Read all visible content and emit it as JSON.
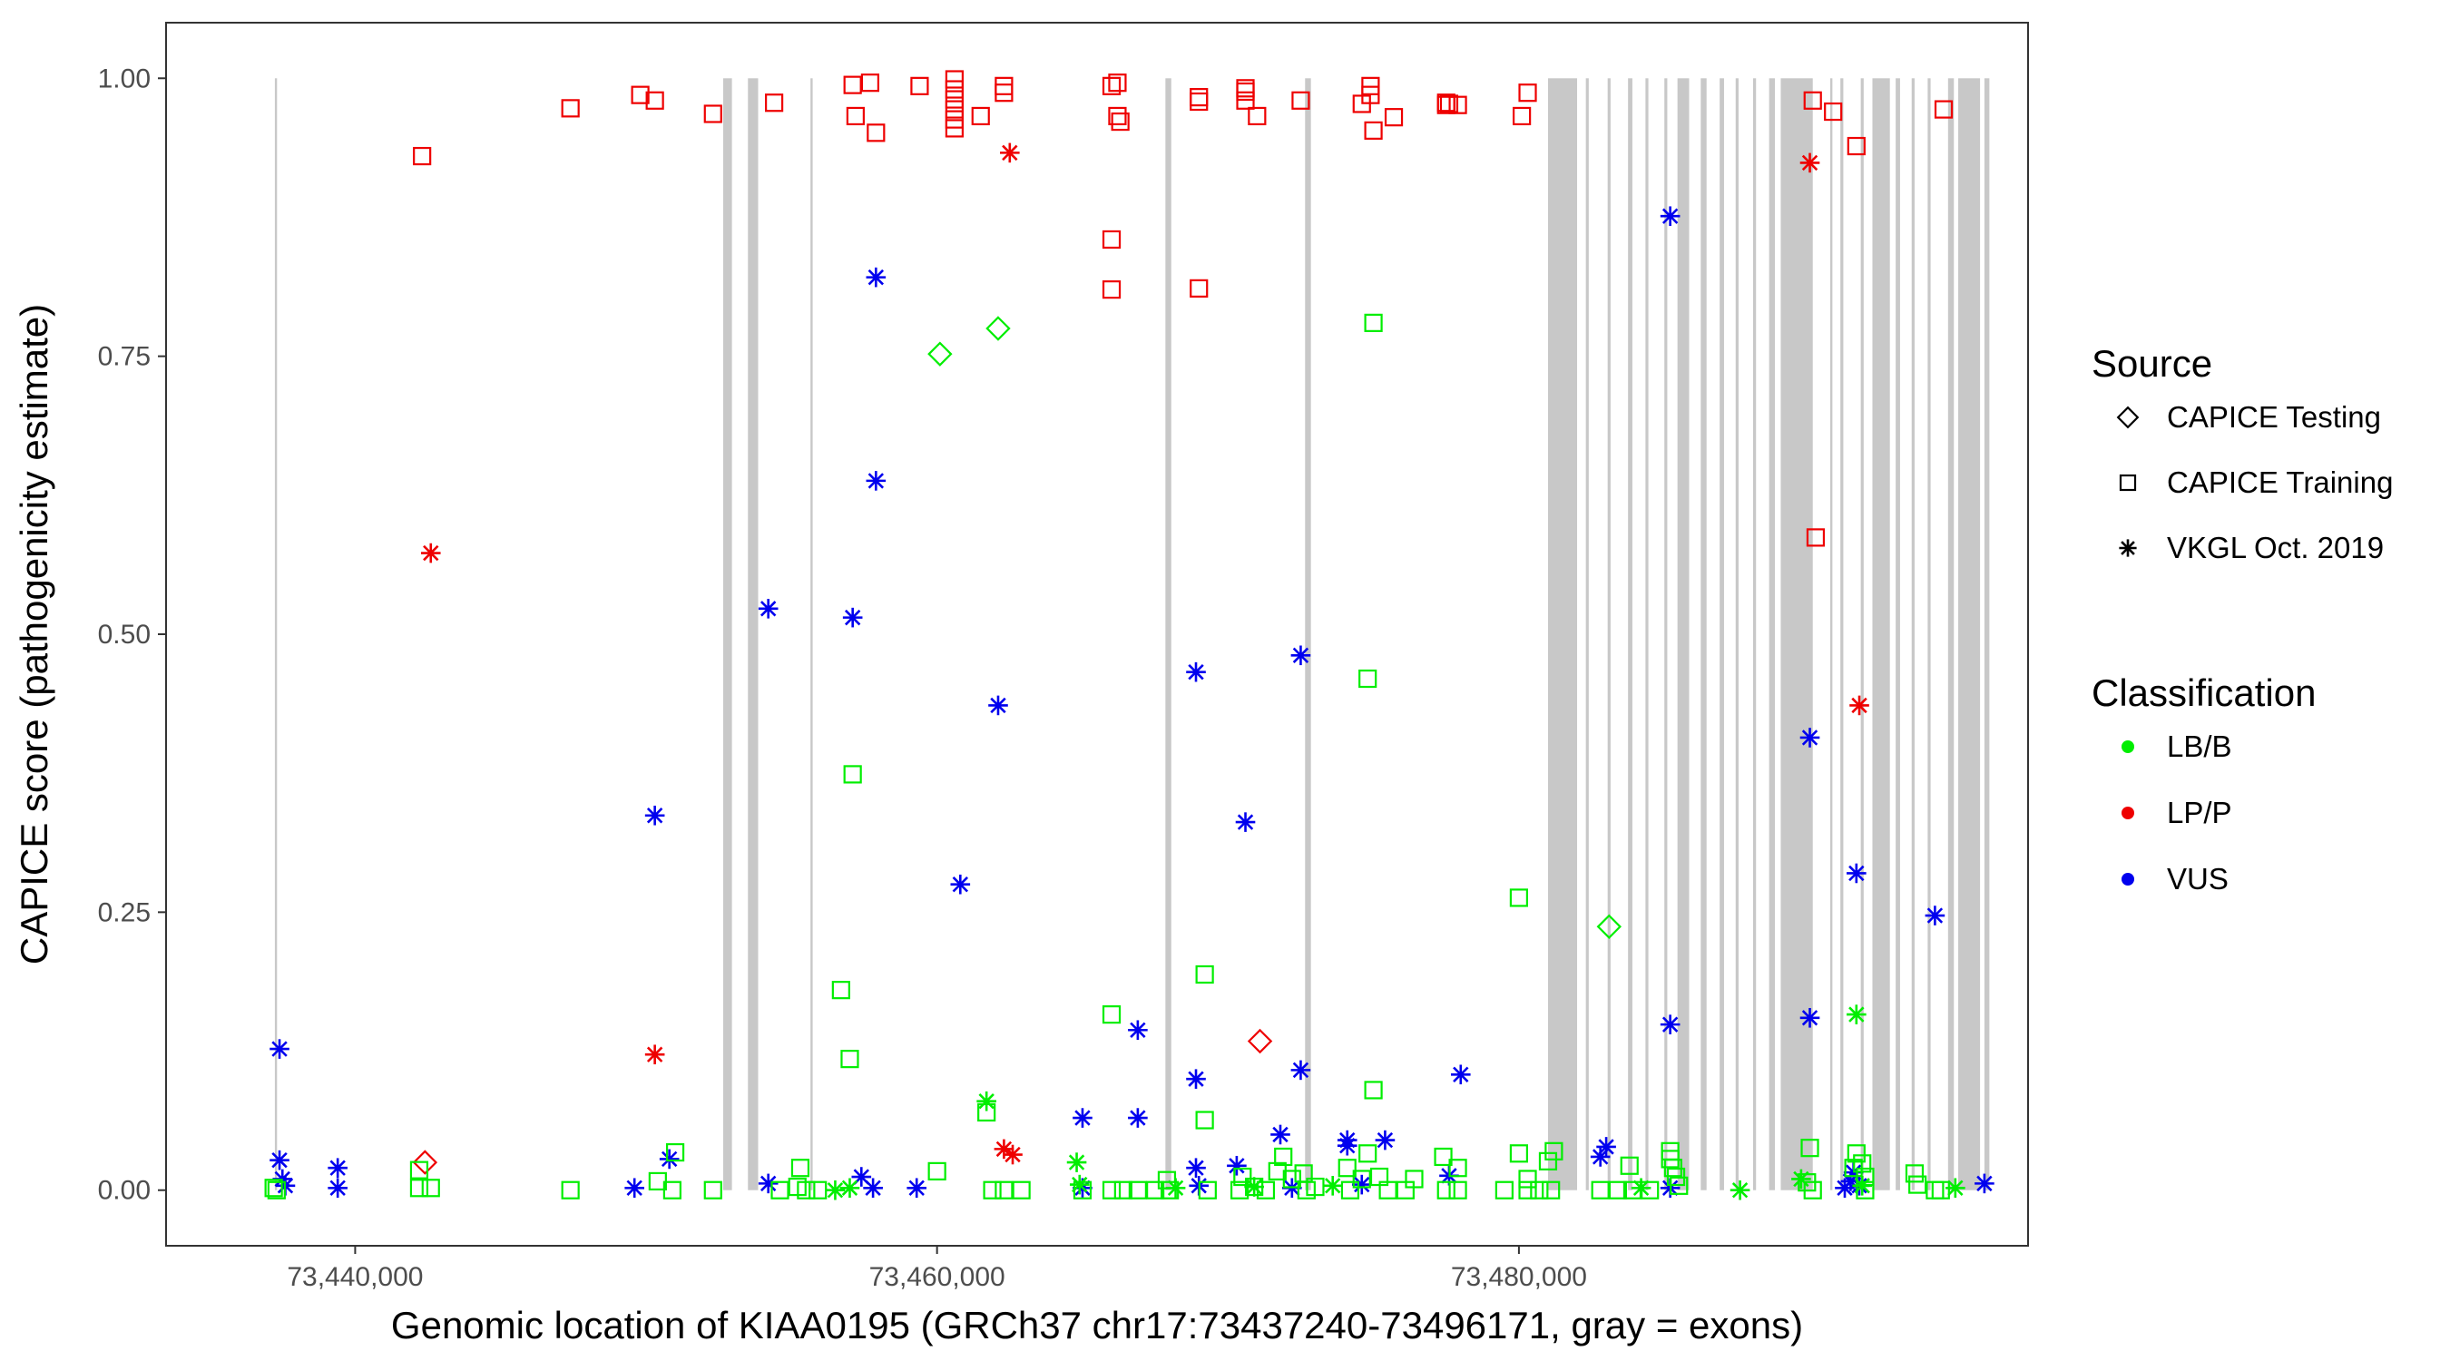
{
  "chart_data": {
    "type": "scatter",
    "title": "",
    "xlabel": "Genomic location of KIAA0195 (GRCh37 chr17:73437240-73496171, gray = exons)",
    "ylabel": "CAPICE score (pathogenicity estimate)",
    "xlim": [
      73433500,
      73497500
    ],
    "ylim": [
      -0.05,
      1.05
    ],
    "x_ticks": [
      73440000,
      73460000,
      73480000
    ],
    "x_tick_labels": [
      "73,440,000",
      "73,460,000",
      "73,480,000"
    ],
    "y_ticks": [
      0,
      0.25,
      0.5,
      0.75,
      1
    ],
    "y_tick_labels": [
      "0.00",
      "0.25",
      "0.50",
      "0.75",
      "1.00"
    ],
    "grid": false,
    "exons": [
      [
        73437240,
        73437290
      ],
      [
        73452650,
        73452950
      ],
      [
        73453500,
        73453850
      ],
      [
        73455650,
        73455700
      ],
      [
        73467850,
        73468050
      ],
      [
        73472650,
        73472850
      ],
      [
        73481000,
        73482000
      ],
      [
        73482300,
        73482400
      ],
      [
        73483050,
        73483150
      ],
      [
        73483750,
        73483900
      ],
      [
        73484350,
        73484450
      ],
      [
        73485000,
        73485100
      ],
      [
        73485450,
        73485850
      ],
      [
        73486250,
        73486450
      ],
      [
        73486900,
        73487050
      ],
      [
        73487450,
        73487550
      ],
      [
        73488050,
        73488150
      ],
      [
        73488600,
        73488800
      ],
      [
        73489000,
        73490100
      ],
      [
        73490700,
        73490750
      ],
      [
        73491050,
        73491150
      ],
      [
        73491750,
        73491850
      ],
      [
        73492150,
        73492750
      ],
      [
        73492950,
        73493100
      ],
      [
        73493500,
        73493600
      ],
      [
        73494050,
        73494150
      ],
      [
        73494750,
        73494950
      ],
      [
        73495100,
        73495850
      ],
      [
        73496000,
        73496171
      ]
    ],
    "legend": {
      "source_title": "Source",
      "source_items": [
        {
          "label": "CAPICE Testing",
          "shape": "diamond"
        },
        {
          "label": "CAPICE Training",
          "shape": "square"
        },
        {
          "label": "VKGL Oct. 2019",
          "shape": "asterisk"
        }
      ],
      "class_title": "Classification",
      "class_items": [
        {
          "label": "LB/B",
          "color": "#00ee00"
        },
        {
          "label": "LP/P",
          "color": "#ee0000"
        },
        {
          "label": "VUS",
          "color": "#0000ee"
        }
      ]
    },
    "series": [
      {
        "name": "LP/P CAPICE Training",
        "classification": "LP/P",
        "source": "CAPICE Training",
        "color": "#ee0000",
        "shape": "square",
        "points": [
          [
            73442300,
            0.93
          ],
          [
            73447400,
            0.973
          ],
          [
            73449800,
            0.985
          ],
          [
            73450300,
            0.98
          ],
          [
            73452300,
            0.968
          ],
          [
            73454400,
            0.978
          ],
          [
            73457100,
            0.994
          ],
          [
            73457700,
            0.996
          ],
          [
            73457200,
            0.966
          ],
          [
            73457900,
            0.951
          ],
          [
            73459400,
            0.993
          ],
          [
            73460600,
            0.999
          ],
          [
            73460600,
            0.99
          ],
          [
            73460600,
            0.981
          ],
          [
            73460600,
            0.972
          ],
          [
            73460600,
            0.963
          ],
          [
            73460600,
            0.955
          ],
          [
            73461500,
            0.966
          ],
          [
            73462300,
            0.993
          ],
          [
            73462300,
            0.987
          ],
          [
            73466000,
            0.993
          ],
          [
            73466200,
            0.996
          ],
          [
            73466200,
            0.966
          ],
          [
            73466300,
            0.961
          ],
          [
            73466000,
            0.855
          ],
          [
            73466000,
            0.81
          ],
          [
            73469000,
            0.983
          ],
          [
            73469000,
            0.979
          ],
          [
            73469000,
            0.811
          ],
          [
            73470600,
            0.991
          ],
          [
            73470600,
            0.988
          ],
          [
            73470600,
            0.98
          ],
          [
            73471000,
            0.966
          ],
          [
            73472500,
            0.98
          ],
          [
            73474900,
            0.993
          ],
          [
            73474600,
            0.977
          ],
          [
            73474900,
            0.985
          ],
          [
            73475000,
            0.953
          ],
          [
            73475700,
            0.965
          ],
          [
            73477500,
            0.978
          ],
          [
            73477500,
            0.976
          ],
          [
            73477600,
            0.977
          ],
          [
            73477900,
            0.976
          ],
          [
            73480100,
            0.966
          ],
          [
            73480300,
            0.987
          ],
          [
            73490100,
            0.98
          ],
          [
            73490800,
            0.97
          ],
          [
            73491600,
            0.939
          ],
          [
            73494600,
            0.972
          ],
          [
            73490200,
            0.587
          ]
        ]
      },
      {
        "name": "LP/P VKGL Oct. 2019",
        "classification": "LP/P",
        "source": "VKGL Oct. 2019",
        "color": "#ee0000",
        "shape": "asterisk",
        "points": [
          [
            73442600,
            0.573
          ],
          [
            73450300,
            0.122
          ],
          [
            73462500,
            0.933
          ],
          [
            73462300,
            0.037
          ],
          [
            73462600,
            0.032
          ],
          [
            73490000,
            0.924
          ],
          [
            73491700,
            0.436
          ]
        ]
      },
      {
        "name": "LP/P CAPICE Testing",
        "classification": "LP/P",
        "source": "CAPICE Testing",
        "color": "#ee0000",
        "shape": "diamond",
        "points": [
          [
            73442400,
            0.025
          ],
          [
            73471100,
            0.134
          ]
        ]
      },
      {
        "name": "LB/B CAPICE Testing",
        "classification": "LB/B",
        "source": "CAPICE Testing",
        "color": "#00ee00",
        "shape": "diamond",
        "points": [
          [
            73460100,
            0.752
          ],
          [
            73462100,
            0.775
          ],
          [
            73483100,
            0.237
          ]
        ]
      },
      {
        "name": "VUS VKGL Oct. 2019",
        "classification": "VUS",
        "source": "VKGL Oct. 2019",
        "color": "#0000ee",
        "shape": "asterisk",
        "points": [
          [
            73437400,
            0.127
          ],
          [
            73437400,
            0.027
          ],
          [
            73437500,
            0.01
          ],
          [
            73437600,
            0.004
          ],
          [
            73439400,
            0.02
          ],
          [
            73439400,
            0.002
          ],
          [
            73449600,
            0.002
          ],
          [
            73450300,
            0.337
          ],
          [
            73450800,
            0.028
          ],
          [
            73454200,
            0.523
          ],
          [
            73454200,
            0.006
          ],
          [
            73457100,
            0.515
          ],
          [
            73457400,
            0.012
          ],
          [
            73457800,
            0.002
          ],
          [
            73457900,
            0.821
          ],
          [
            73457900,
            0.638
          ],
          [
            73459300,
            0.002
          ],
          [
            73460800,
            0.275
          ],
          [
            73462100,
            0.436
          ],
          [
            73465000,
            0.065
          ],
          [
            73465000,
            0.002
          ],
          [
            73466900,
            0.144
          ],
          [
            73466900,
            0.065
          ],
          [
            73468900,
            0.1
          ],
          [
            73468900,
            0.466
          ],
          [
            73468900,
            0.02
          ],
          [
            73469000,
            0.004
          ],
          [
            73470300,
            0.022
          ],
          [
            73470600,
            0.331
          ],
          [
            73471800,
            0.05
          ],
          [
            73472200,
            0.002
          ],
          [
            73472500,
            0.481
          ],
          [
            73472500,
            0.108
          ],
          [
            73474100,
            0.045
          ],
          [
            73474100,
            0.04
          ],
          [
            73474600,
            0.005
          ],
          [
            73475400,
            0.045
          ],
          [
            73477600,
            0.013
          ],
          [
            73478000,
            0.104
          ],
          [
            73482800,
            0.03
          ],
          [
            73483000,
            0.039
          ],
          [
            73485200,
            0.876
          ],
          [
            73485200,
            0.149
          ],
          [
            73485200,
            0.002
          ],
          [
            73490000,
            0.407
          ],
          [
            73490000,
            0.155
          ],
          [
            73491200,
            0.002
          ],
          [
            73491400,
            0.008
          ],
          [
            73491500,
            0.016
          ],
          [
            73491600,
            0.285
          ],
          [
            73491700,
            0.004
          ],
          [
            73494300,
            0.247
          ],
          [
            73496000,
            0.006
          ]
        ]
      },
      {
        "name": "LB/B VKGL Oct. 2019",
        "classification": "LB/B",
        "source": "VKGL Oct. 2019",
        "color": "#00ee00",
        "shape": "asterisk",
        "points": [
          [
            73456500,
            0.0
          ],
          [
            73457000,
            0.002
          ],
          [
            73461700,
            0.08
          ],
          [
            73464800,
            0.025
          ],
          [
            73464900,
            0.005
          ],
          [
            73468200,
            0.002
          ],
          [
            73470900,
            0.003
          ],
          [
            73473600,
            0.004
          ],
          [
            73484200,
            0.002
          ],
          [
            73487600,
            0.0
          ],
          [
            73489700,
            0.01
          ],
          [
            73491600,
            0.158
          ],
          [
            73491800,
            0.004
          ],
          [
            73495000,
            0.002
          ]
        ]
      },
      {
        "name": "LB/B CAPICE Training",
        "classification": "LB/B",
        "source": "CAPICE Training",
        "color": "#00ee00",
        "shape": "square",
        "points": [
          [
            73437200,
            0.002
          ],
          [
            73437300,
            0.0
          ],
          [
            73442200,
            0.018
          ],
          [
            73442200,
            0.002
          ],
          [
            73442600,
            0.002
          ],
          [
            73447400,
            0.0
          ],
          [
            73450400,
            0.008
          ],
          [
            73450900,
            0.0
          ],
          [
            73451000,
            0.034
          ],
          [
            73452300,
            0.0
          ],
          [
            73454600,
            0.0
          ],
          [
            73455300,
            0.02
          ],
          [
            73455200,
            0.003
          ],
          [
            73455500,
            0.0
          ],
          [
            73455900,
            0.0
          ],
          [
            73456700,
            0.18
          ],
          [
            73457000,
            0.118
          ],
          [
            73457100,
            0.374
          ],
          [
            73460000,
            0.017
          ],
          [
            73461700,
            0.07
          ],
          [
            73461900,
            0.0
          ],
          [
            73462300,
            0.0
          ],
          [
            73462900,
            0.0
          ],
          [
            73465000,
            0.0
          ],
          [
            73466000,
            0.158
          ],
          [
            73466000,
            0.0
          ],
          [
            73466400,
            0.0
          ],
          [
            73466900,
            0.0
          ],
          [
            73467500,
            0.0
          ],
          [
            73467900,
            0.009
          ],
          [
            73468000,
            0.0
          ],
          [
            73469200,
            0.194
          ],
          [
            73469200,
            0.063
          ],
          [
            73469300,
            0.0
          ],
          [
            73470400,
            0.0
          ],
          [
            73470500,
            0.012
          ],
          [
            73470900,
            0.003
          ],
          [
            73471300,
            0.0
          ],
          [
            73471700,
            0.017
          ],
          [
            73471900,
            0.03
          ],
          [
            73472200,
            0.01
          ],
          [
            73472600,
            0.015
          ],
          [
            73472700,
            0.0
          ],
          [
            73473000,
            0.003
          ],
          [
            73474100,
            0.02
          ],
          [
            73474200,
            0.0
          ],
          [
            73474600,
            0.01
          ],
          [
            73474800,
            0.033
          ],
          [
            73474800,
            0.46
          ],
          [
            73475000,
            0.09
          ],
          [
            73475000,
            0.78
          ],
          [
            73475200,
            0.012
          ],
          [
            73475500,
            0.0
          ],
          [
            73476100,
            0.0
          ],
          [
            73476400,
            0.01
          ],
          [
            73477400,
            0.03
          ],
          [
            73477500,
            0.0
          ],
          [
            73477900,
            0.02
          ],
          [
            73477900,
            0.0
          ],
          [
            73479500,
            0.0
          ],
          [
            73480000,
            0.263
          ],
          [
            73480000,
            0.033
          ],
          [
            73480300,
            0.01
          ],
          [
            73480300,
            0.0
          ],
          [
            73480700,
            0.0
          ],
          [
            73481000,
            0.026
          ],
          [
            73481100,
            0.0
          ],
          [
            73481200,
            0.035
          ],
          [
            73482800,
            0.0
          ],
          [
            73483400,
            0.0
          ],
          [
            73483800,
            0.022
          ],
          [
            73483900,
            0.0
          ],
          [
            73484500,
            0.0
          ],
          [
            73485200,
            0.035
          ],
          [
            73485200,
            0.028
          ],
          [
            73485300,
            0.02
          ],
          [
            73485400,
            0.012
          ],
          [
            73485500,
            0.004
          ],
          [
            73489900,
            0.007
          ],
          [
            73490000,
            0.038
          ],
          [
            73490100,
            0.0
          ],
          [
            73491500,
            0.02
          ],
          [
            73491600,
            0.033
          ],
          [
            73491800,
            0.024
          ],
          [
            73491900,
            0.012
          ],
          [
            73491900,
            0.0
          ],
          [
            73493600,
            0.015
          ],
          [
            73493700,
            0.005
          ],
          [
            73494300,
            0.0
          ],
          [
            73494500,
            0.0
          ]
        ]
      }
    ]
  }
}
